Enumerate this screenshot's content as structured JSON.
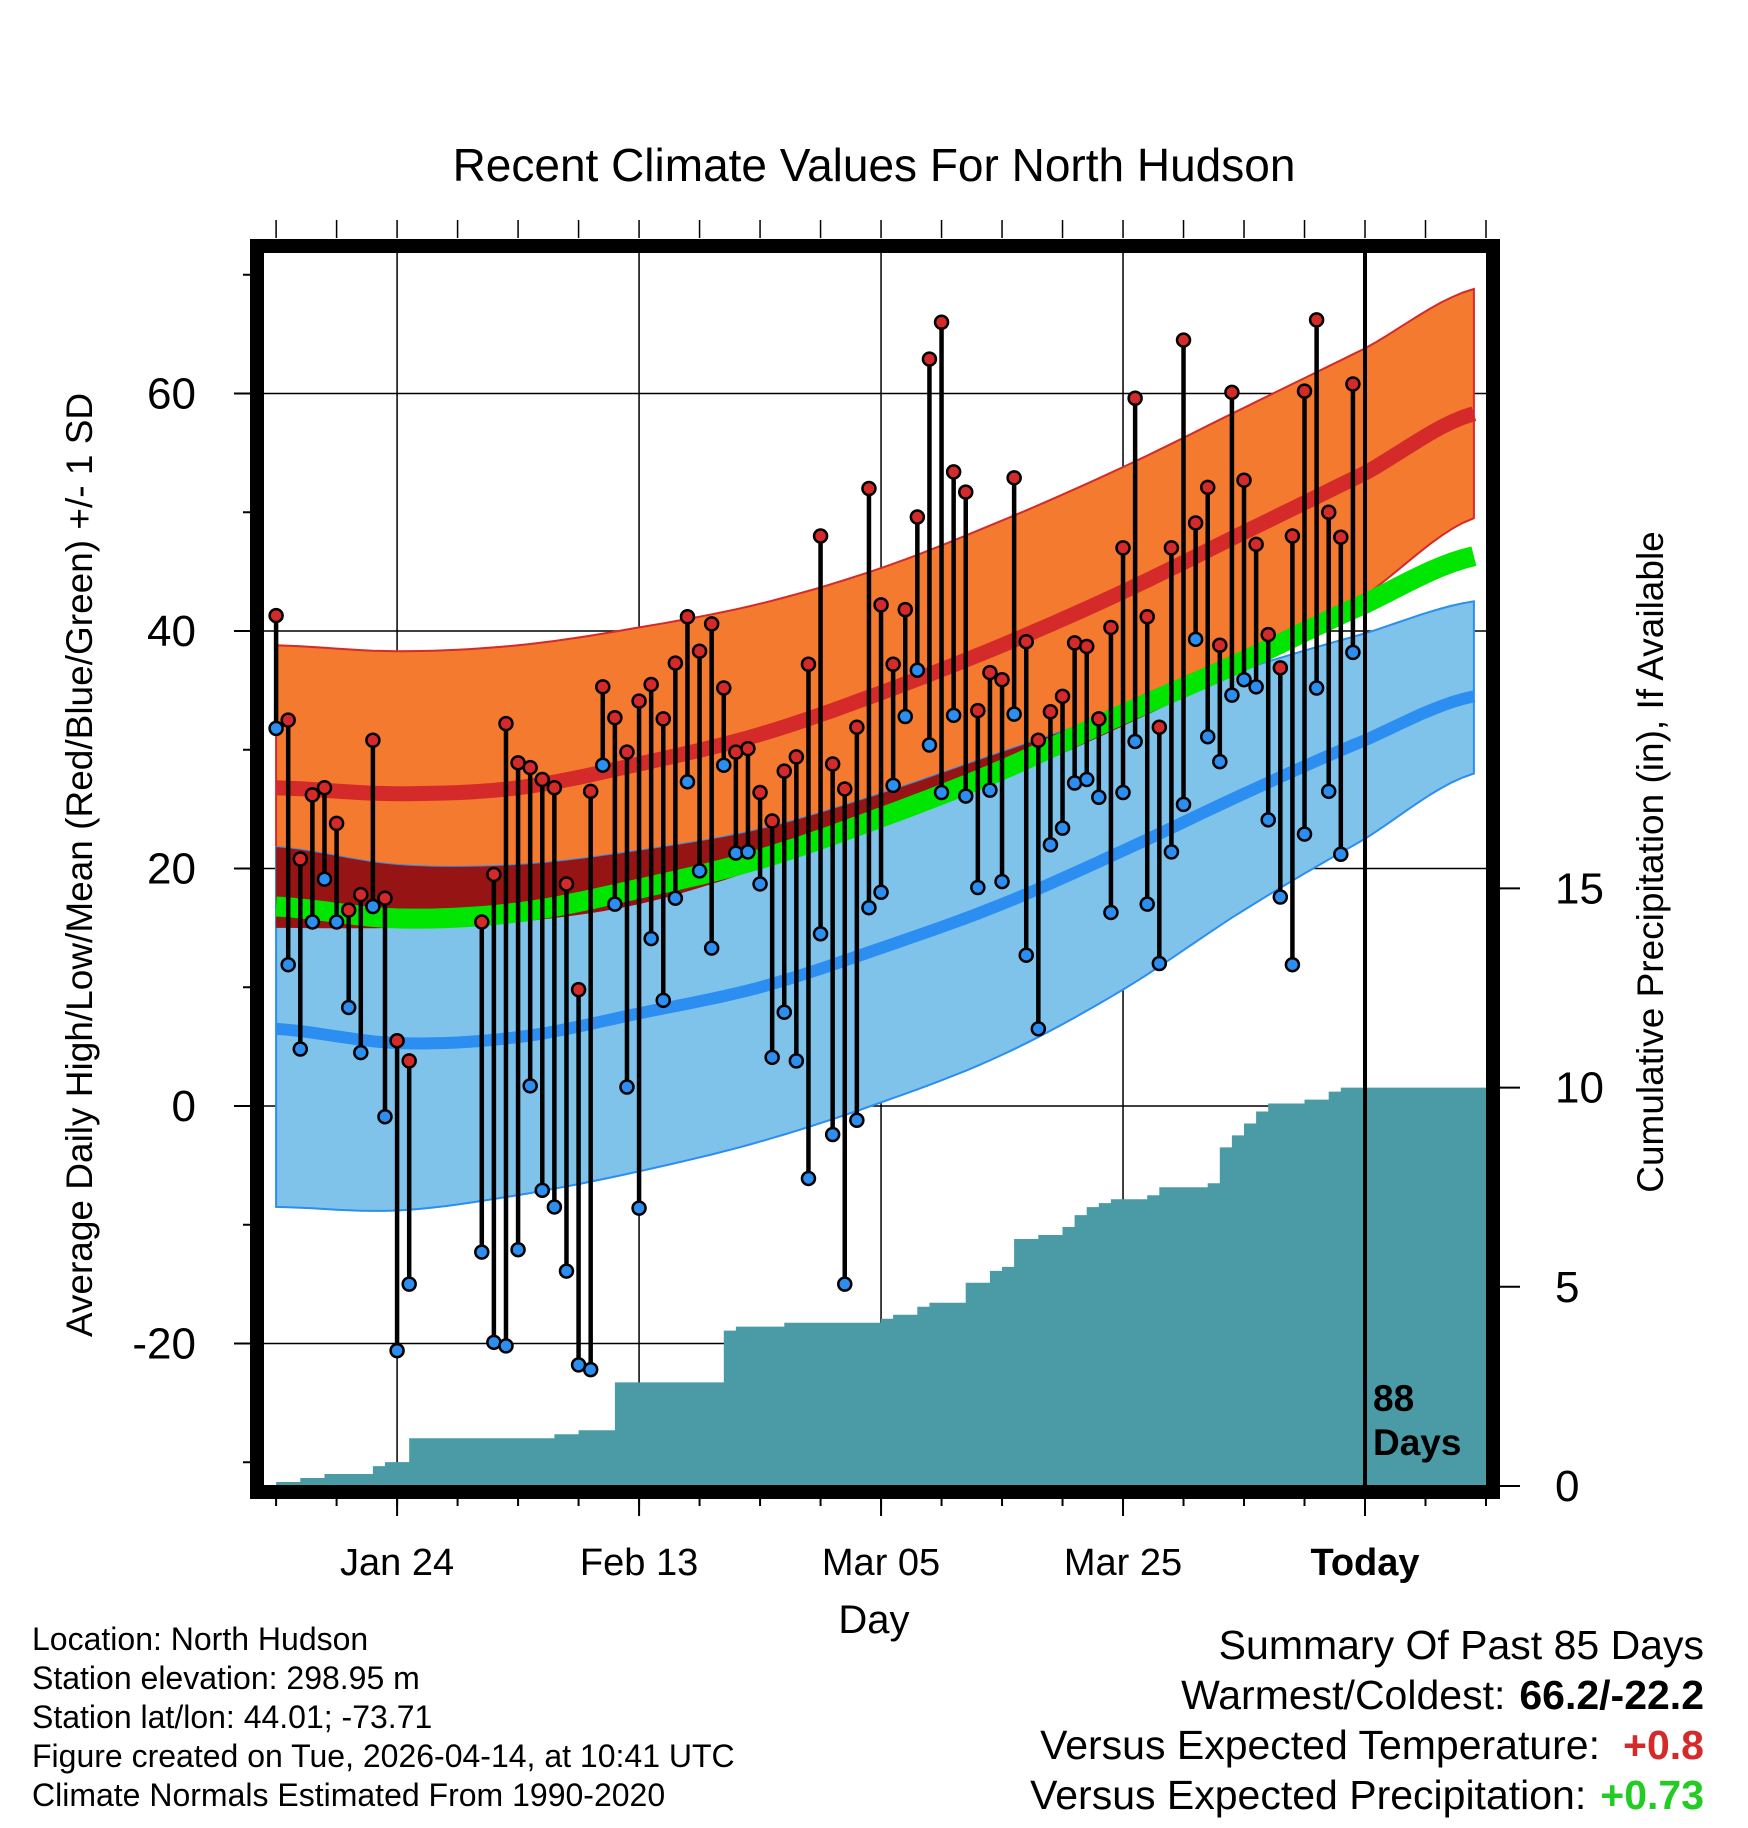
{
  "chart_data": {
    "type": "line",
    "title": "Recent Climate Values For North Hudson",
    "xlabel": "Day",
    "ylabel_left": "Average Daily High/Low/Mean (Red/Blue/Green) +/- 1 SD",
    "ylabel_right": "Cumulative Precipitation (in), If Available",
    "ylim_left": [
      -32,
      72
    ],
    "ylim_right": [
      0,
      31
    ],
    "left_ticks": [
      -20,
      0,
      20,
      40,
      60
    ],
    "right_ticks": [
      0,
      5,
      10,
      15
    ],
    "x_tick_labels": [
      {
        "day": 10,
        "label": "Jan 24"
      },
      {
        "day": 30,
        "label": "Feb 13"
      },
      {
        "day": 50,
        "label": "Mar 05"
      },
      {
        "day": 70,
        "label": "Mar 25"
      },
      {
        "day": 90,
        "label": "Today"
      }
    ],
    "xlim": [
      -1,
      100
    ],
    "today_day": 90,
    "today_annotation": [
      "88",
      "Days"
    ],
    "normals": {
      "days": [
        0,
        10,
        20,
        30,
        40,
        50,
        60,
        70,
        80,
        90,
        99
      ],
      "high_mean": [
        26.8,
        26.3,
        26.8,
        28.8,
        31.3,
        34.8,
        38.8,
        43.3,
        48.3,
        53.3,
        58.3
      ],
      "high_upper": [
        38.8,
        38.3,
        38.8,
        40.3,
        42.3,
        45.3,
        49.3,
        53.8,
        58.8,
        63.8,
        68.8
      ],
      "high_lower": [
        15.0,
        15.0,
        15.5,
        17.0,
        20.0,
        23.5,
        27.5,
        32.0,
        37.0,
        43.0,
        49.5
      ],
      "low_mean": [
        6.5,
        5.3,
        5.8,
        7.8,
        10.0,
        13.3,
        17.0,
        21.5,
        26.3,
        30.8,
        34.5
      ],
      "low_upper": [
        21.8,
        20.3,
        20.3,
        21.5,
        23.3,
        26.3,
        29.8,
        33.3,
        36.8,
        39.8,
        42.5
      ],
      "low_lower": [
        -8.5,
        -8.8,
        -7.5,
        -5.5,
        -3.0,
        0.3,
        4.3,
        9.8,
        16.5,
        22.5,
        28.0
      ],
      "avg_mean": [
        16.8,
        15.8,
        16.3,
        18.3,
        20.8,
        24.3,
        28.3,
        33.0,
        37.5,
        42.3,
        46.3
      ]
    },
    "daily_high": [
      41.3,
      32.5,
      20.8,
      26.2,
      26.8,
      23.8,
      16.5,
      17.8,
      30.8,
      17.5,
      5.5,
      3.8,
      null,
      null,
      null,
      null,
      null,
      15.5,
      19.5,
      32.2,
      28.9,
      28.5,
      27.5,
      26.8,
      18.7,
      9.8,
      26.5,
      35.3,
      32.7,
      29.8,
      34.1,
      35.5,
      32.6,
      37.3,
      41.2,
      38.3,
      40.6,
      35.2,
      29.8,
      30.1,
      26.4,
      24.0,
      28.2,
      29.4,
      37.2,
      48.0,
      28.8,
      26.7,
      31.9,
      52.0,
      42.2,
      37.2,
      41.8,
      49.6,
      62.9,
      66.0,
      53.4,
      51.7,
      33.3,
      36.5,
      35.9,
      52.9,
      39.1,
      30.8,
      33.2,
      34.5,
      39.0,
      38.7,
      32.6,
      40.3,
      47.0,
      59.6,
      41.2,
      31.9,
      47.0,
      64.5,
      49.1,
      52.1,
      38.8,
      60.1,
      52.7,
      47.3,
      39.7,
      36.9,
      48.0,
      60.2,
      66.2,
      50.0,
      47.9,
      60.8
    ],
    "daily_low": [
      31.8,
      11.9,
      4.8,
      15.5,
      19.1,
      15.5,
      8.3,
      4.5,
      16.8,
      -0.9,
      -20.6,
      -15.0,
      null,
      null,
      null,
      null,
      null,
      -12.3,
      -19.9,
      -20.2,
      -12.1,
      1.7,
      -7.1,
      -8.5,
      -13.9,
      -21.8,
      -22.2,
      28.7,
      17.0,
      1.6,
      -8.6,
      14.1,
      8.9,
      17.5,
      27.3,
      19.8,
      13.3,
      28.7,
      21.3,
      21.4,
      18.7,
      4.1,
      7.9,
      3.8,
      -6.1,
      14.5,
      -2.4,
      -15.0,
      -1.2,
      16.7,
      18.0,
      27.0,
      32.8,
      36.7,
      30.4,
      26.4,
      32.9,
      26.1,
      18.4,
      26.6,
      18.9,
      33.0,
      12.7,
      6.5,
      22.0,
      23.4,
      27.2,
      27.5,
      26.0,
      16.3,
      26.4,
      30.7,
      17.0,
      12.0,
      21.4,
      25.4,
      39.3,
      31.1,
      29.0,
      34.6,
      35.9,
      35.3,
      24.1,
      17.6,
      11.9,
      22.9,
      35.2,
      26.5,
      21.2,
      38.2
    ],
    "cumulative_precip": {
      "days": [
        -1,
        0,
        2,
        4,
        6,
        8,
        9,
        10,
        11,
        13,
        17,
        20,
        23,
        25,
        27,
        28,
        30,
        34,
        36,
        37,
        38,
        39,
        40,
        42,
        44,
        47,
        50,
        51,
        53,
        54,
        55,
        57,
        59,
        60,
        61,
        63,
        64,
        65,
        66,
        67,
        68,
        69,
        70,
        71,
        72,
        73,
        74,
        75,
        76,
        77,
        78,
        79,
        80,
        81,
        82,
        84,
        85,
        86,
        87,
        88,
        90,
        100
      ],
      "values": [
        0.0,
        0.1,
        0.2,
        0.3,
        0.3,
        0.5,
        0.6,
        0.6,
        1.2,
        1.2,
        1.2,
        1.2,
        1.3,
        1.4,
        1.4,
        2.6,
        2.6,
        2.6,
        2.6,
        3.9,
        4.0,
        4.0,
        4.0,
        4.1,
        4.1,
        4.1,
        4.2,
        4.3,
        4.5,
        4.6,
        4.6,
        5.1,
        5.4,
        5.5,
        6.2,
        6.3,
        6.3,
        6.5,
        6.8,
        7.0,
        7.1,
        7.2,
        7.2,
        7.2,
        7.3,
        7.5,
        7.5,
        7.5,
        7.5,
        7.6,
        8.5,
        8.8,
        9.1,
        9.4,
        9.6,
        9.6,
        9.7,
        9.7,
        9.9,
        10.0,
        10.0,
        10.0
      ]
    }
  },
  "meta": {
    "location": "Location: North Hudson",
    "elevation": "Station elevation: 298.95 m",
    "latlon": "Station lat/lon: 44.01; -73.71",
    "created": "Figure created on Tue, 2026-04-14, at 10:41 UTC",
    "normals": "Climate Normals Estimated From 1990-2020"
  },
  "summary": {
    "title": "Summary Of Past 85 Days",
    "warm_cold_label": "Warmest/Coldest:",
    "warm_cold_value": "66.2/-22.2",
    "temp_label": "Versus Expected Temperature:",
    "temp_value": "+0.8",
    "precip_label": "Versus Expected Precipitation:",
    "precip_value": "+0.73"
  },
  "colors": {
    "high_band": "#f47a2f",
    "high_line": "#d52a2a",
    "overlap_band": "#961414",
    "low_band": "#7fc2ea",
    "low_line": "#2b8ef0",
    "mean_line": "#00e600",
    "precip_fill": "#4a9ba5",
    "high_dot": "#d52a2a",
    "low_dot": "#2b8ef0",
    "temp_value_color": "#d52a2a",
    "precip_value_color": "#22cc22"
  }
}
